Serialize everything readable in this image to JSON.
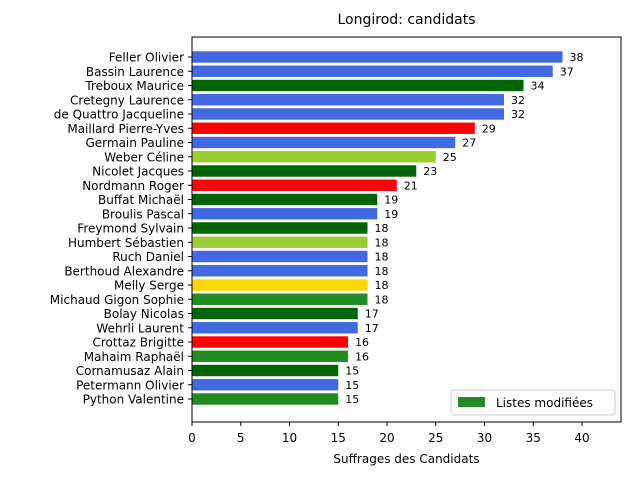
{
  "chart_data": {
    "type": "bar",
    "orientation": "horizontal",
    "title": "Longirod: candidats",
    "xlabel": "Suffrages des Candidats",
    "ylabel": "",
    "xlim": [
      0,
      44
    ],
    "xticks": [
      0,
      5,
      10,
      15,
      20,
      25,
      30,
      35,
      40
    ],
    "grid": false,
    "legend": {
      "placement": "lower-right",
      "entries": [
        {
          "label": "Listes modifiées",
          "color": "#228b22"
        }
      ]
    },
    "colors": {
      "blue": "#4169e1",
      "darkgreen": "#006400",
      "red": "#ff0000",
      "yellowgreen": "#9acd32",
      "gold": "#ffd700",
      "forestgreen": "#228b22"
    },
    "bars": [
      {
        "label": "Feller Olivier",
        "value": 38,
        "color": "#4169e1"
      },
      {
        "label": "Bassin Laurence",
        "value": 37,
        "color": "#4169e1"
      },
      {
        "label": "Treboux Maurice",
        "value": 34,
        "color": "#006400"
      },
      {
        "label": "Cretegny Laurence",
        "value": 32,
        "color": "#4169e1"
      },
      {
        "label": "de Quattro Jacqueline",
        "value": 32,
        "color": "#4169e1"
      },
      {
        "label": "Maillard Pierre-Yves",
        "value": 29,
        "color": "#ff0000"
      },
      {
        "label": "Germain Pauline",
        "value": 27,
        "color": "#4169e1"
      },
      {
        "label": "Weber Céline",
        "value": 25,
        "color": "#9acd32"
      },
      {
        "label": "Nicolet Jacques",
        "value": 23,
        "color": "#006400"
      },
      {
        "label": "Nordmann Roger",
        "value": 21,
        "color": "#ff0000"
      },
      {
        "label": "Buffat Michaël",
        "value": 19,
        "color": "#006400"
      },
      {
        "label": "Broulis Pascal",
        "value": 19,
        "color": "#4169e1"
      },
      {
        "label": "Freymond Sylvain",
        "value": 18,
        "color": "#006400"
      },
      {
        "label": "Humbert Sébastien",
        "value": 18,
        "color": "#9acd32"
      },
      {
        "label": "Ruch Daniel",
        "value": 18,
        "color": "#4169e1"
      },
      {
        "label": "Berthoud Alexandre",
        "value": 18,
        "color": "#4169e1"
      },
      {
        "label": "Melly Serge",
        "value": 18,
        "color": "#ffd700"
      },
      {
        "label": "Michaud Gigon Sophie",
        "value": 18,
        "color": "#228b22"
      },
      {
        "label": "Bolay Nicolas",
        "value": 17,
        "color": "#006400"
      },
      {
        "label": "Wehrli Laurent",
        "value": 17,
        "color": "#4169e1"
      },
      {
        "label": "Crottaz Brigitte",
        "value": 16,
        "color": "#ff0000"
      },
      {
        "label": "Mahaim Raphaël",
        "value": 16,
        "color": "#228b22"
      },
      {
        "label": "Cornamusaz Alain",
        "value": 15,
        "color": "#006400"
      },
      {
        "label": "Petermann Olivier",
        "value": 15,
        "color": "#4169e1"
      },
      {
        "label": "Python Valentine",
        "value": 15,
        "color": "#228b22"
      }
    ]
  }
}
